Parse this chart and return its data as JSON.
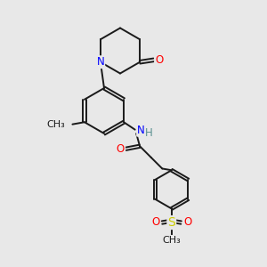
{
  "background_color": "#e8e8e8",
  "bond_color": "#1a1a1a",
  "atom_colors": {
    "N": "#0000ff",
    "O": "#ff0000",
    "S": "#cccc00",
    "C": "#1a1a1a",
    "H": "#5a9090"
  },
  "figsize": [
    3.0,
    3.0
  ],
  "dpi": 100,
  "lw": 1.4,
  "fs": 8.5
}
